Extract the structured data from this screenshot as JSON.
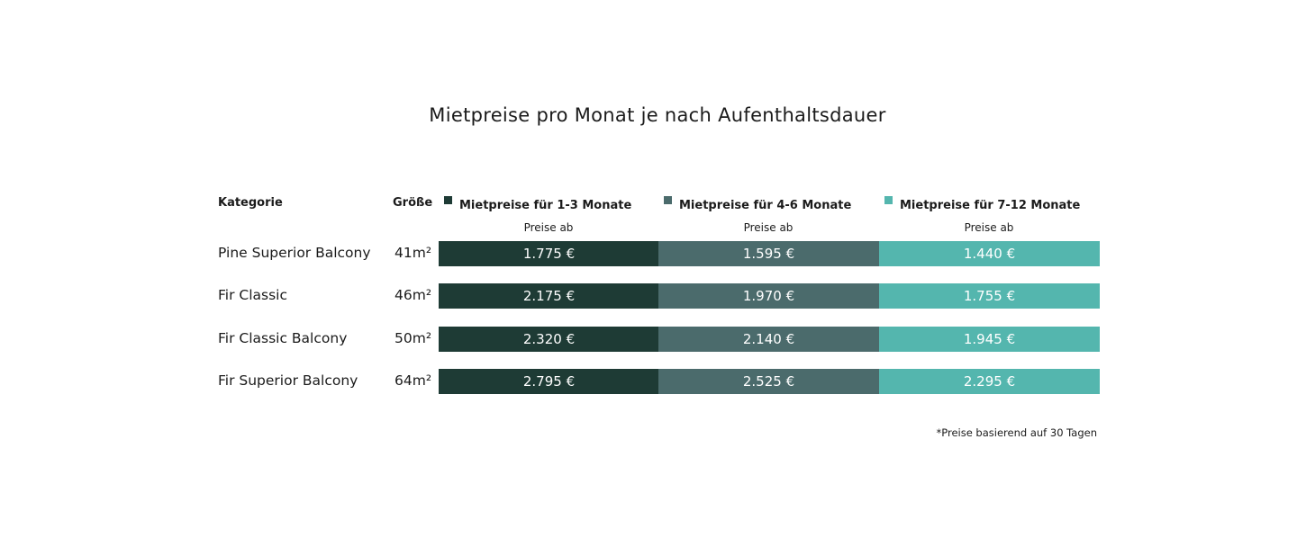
{
  "title": "Mietpreise pro Monat je nach Aufenthaltsdauer",
  "table": {
    "headers": [
      "Kategorie",
      "Größe",
      "Mietpreise für 1-3 Monate",
      "Mietpreise für 4-6 Monate",
      "Mietpreise für 7-12 Monate"
    ],
    "subheaders": [
      "Preise ab",
      "Preise ab",
      "Preise ab"
    ],
    "column_colors": [
      "#1e3b35",
      "#4b6b6c",
      "#54b6ae"
    ],
    "rows": [
      [
        "Pine Superior Balcony",
        "41m²",
        "1.775 €",
        "1.595 €",
        "1.440 €"
      ],
      [
        "Fir Classic",
        "46m²",
        "2.175 €",
        "1.970 €",
        "1.755 €"
      ],
      [
        "Fir Classic Balcony",
        "50m²",
        "2.320 €",
        "2.140 €",
        "1.945 €"
      ],
      [
        "Fir Superior Balcony",
        "64m²",
        "2.795 €",
        "2.525 €",
        "2.295 €"
      ]
    ]
  },
  "footnote": "*Preise basierend auf 30 Tagen"
}
